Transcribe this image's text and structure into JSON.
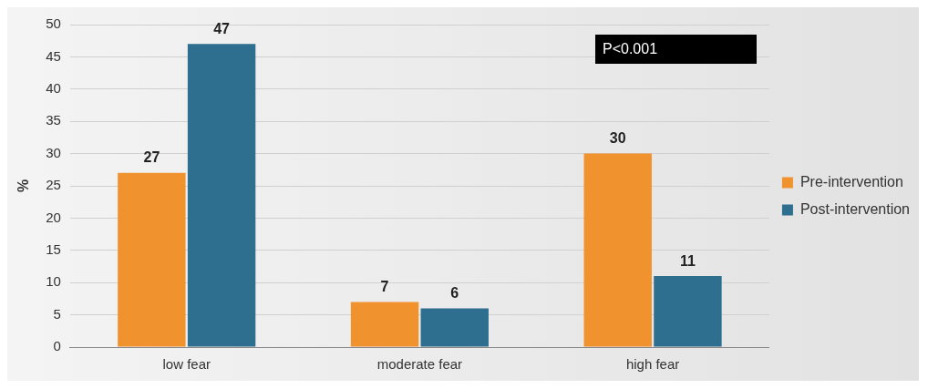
{
  "chart_data": {
    "type": "bar",
    "ylabel": "%",
    "categories": [
      "low fear",
      "moderate fear",
      "high fear"
    ],
    "series": [
      {
        "name": "Pre-intervention",
        "color": "#f0922e",
        "values": [
          27,
          7,
          30
        ]
      },
      {
        "name": "Post-intervention",
        "color": "#2e6e8e",
        "values": [
          47,
          6,
          11
        ]
      }
    ],
    "ylim": [
      0,
      50
    ],
    "yticks": [
      0,
      5,
      10,
      15,
      20,
      25,
      30,
      35,
      40,
      45,
      50
    ],
    "grid": "y",
    "legend": "right",
    "data_labels": true,
    "annotations": [
      "P<0.001"
    ]
  }
}
